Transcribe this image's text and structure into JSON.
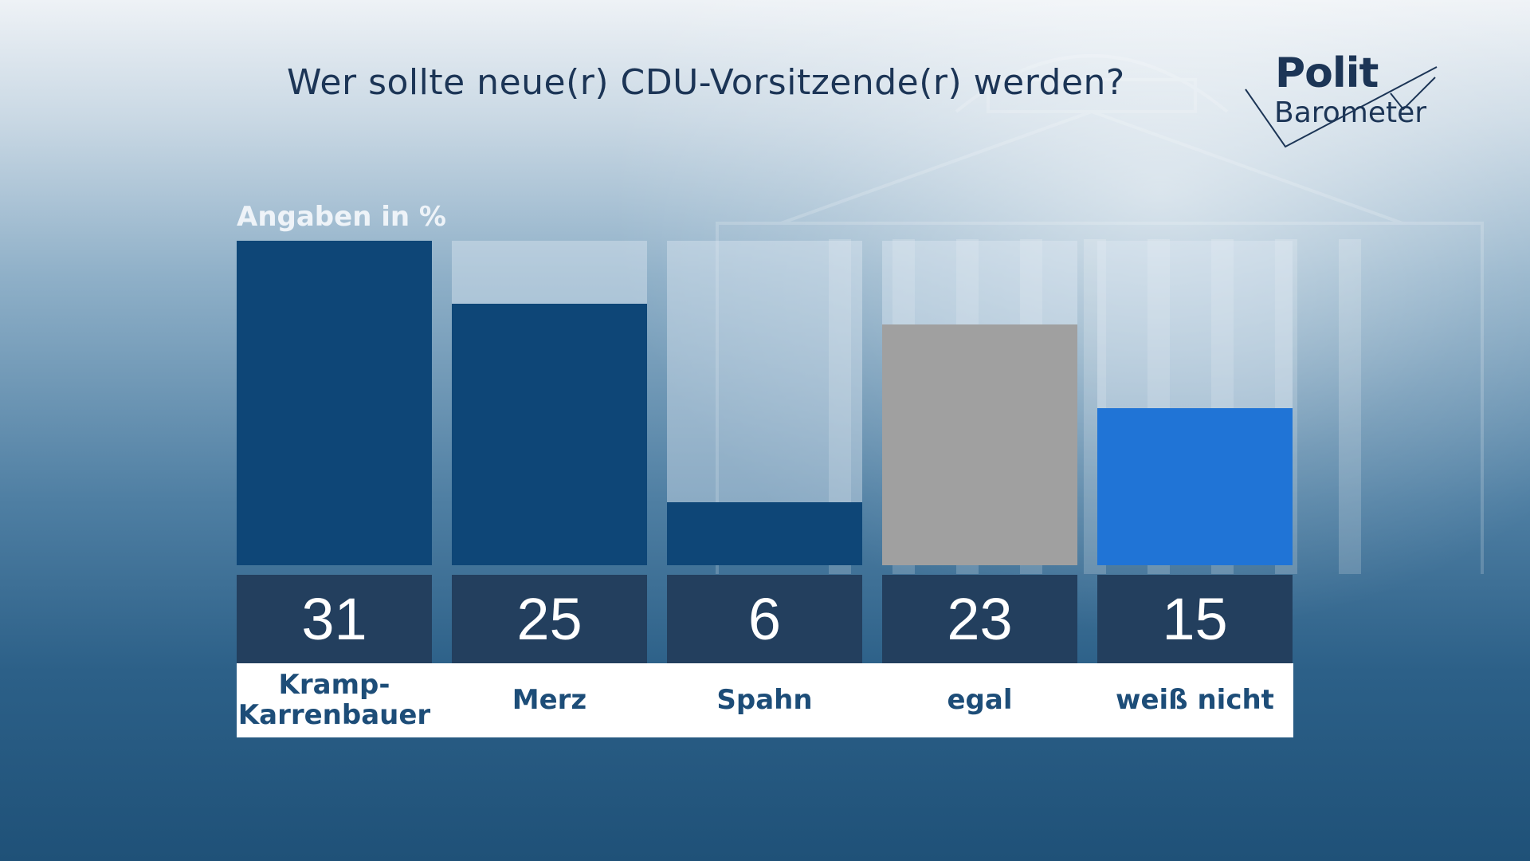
{
  "title": "Wer sollte neue(r) CDU-Vorsitzende(r) werden?",
  "logo": {
    "line1": "Polit",
    "line2": "Barometer"
  },
  "colors": {
    "dark_blue": "#0e4677",
    "gray": "#a0a0a0",
    "bright_blue": "#2074d6",
    "value_box": "#233f5e",
    "label_text": "#1d4d78"
  },
  "chart_data": {
    "type": "bar",
    "title": "Wer sollte neue(r) CDU-Vorsitzende(r) werden?",
    "unit_label": "Angaben in %",
    "xlabel": "",
    "ylabel": "",
    "ylim": [
      0,
      31
    ],
    "categories": [
      "Kramp-\nKarrenbauer",
      "Merz",
      "Spahn",
      "egal",
      "weiß nicht"
    ],
    "values": [
      31,
      25,
      6,
      23,
      15
    ],
    "bar_colors": [
      "#0e4677",
      "#0e4677",
      "#0e4677",
      "#a0a0a0",
      "#2074d6"
    ]
  }
}
